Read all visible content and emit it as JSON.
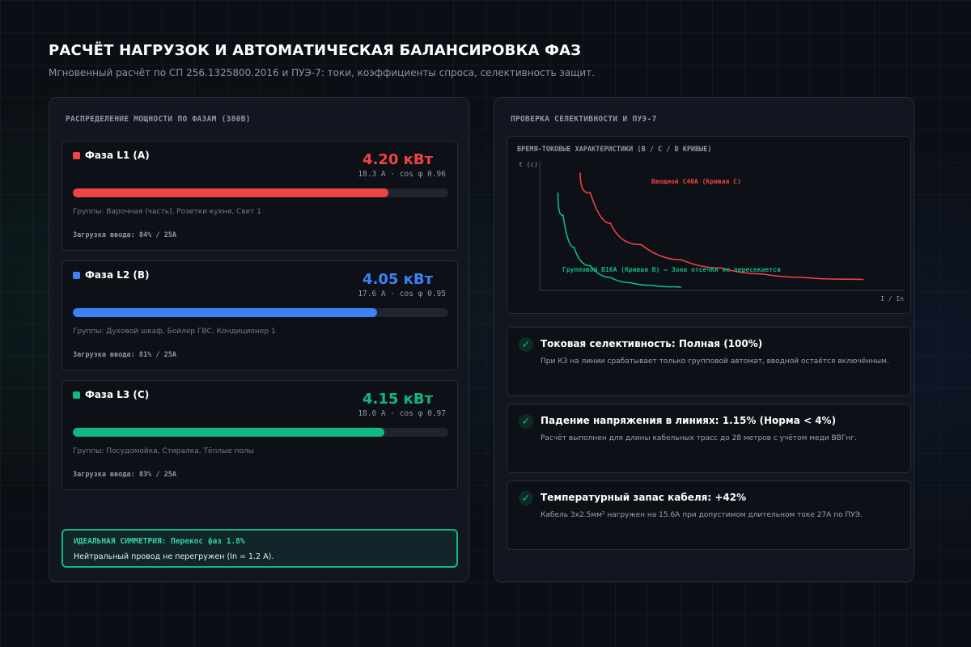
{
  "header": {
    "title": "РАСЧЁТ НАГРУЗОК И АВТОМАТИЧЕСКАЯ БАЛАНСИРОВКА ФАЗ",
    "subtitle": "Мгновенный расчёт по СП 256.1325800.2016 и ПУЭ-7: токи, коэффициенты спроса, селективность защит."
  },
  "left_panel": {
    "title": "РАСПРЕДЕЛЕНИЕ МОЩНОСТИ ПО ФАЗАМ (380В)",
    "phases": [
      {
        "name": "Фаза L1 (A)",
        "power": "4.20 кВт",
        "meta": "18.3 А · cos φ 0.96",
        "fill_fraction": 0.84,
        "groups": "Группы: Варочная (часть), Розетки кухня, Свет 1",
        "load": "Загрузка ввода: 84% / 25A",
        "color": "#ef4444"
      },
      {
        "name": "Фаза L2 (B)",
        "power": "4.05 кВт",
        "meta": "17.6 А · cos φ 0.95",
        "fill_fraction": 0.81,
        "groups": "Группы: Духовой шкаф, Бойлер ГВС, Кондиционер 1",
        "load": "Загрузка ввода: 81% / 25A",
        "color": "#3b82f6"
      },
      {
        "name": "Фаза L3 (C)",
        "power": "4.15 кВт",
        "meta": "18.0 А · cos φ 0.97",
        "fill_fraction": 0.83,
        "groups": "Группы: Посудомойка, Стиралка, Тёплые полы",
        "load": "Загрузка ввода: 83% / 25A",
        "color": "#10b981"
      }
    ],
    "symmetry": {
      "title": "ИДЕАЛЬНАЯ СИММЕТРИЯ: Перекос фаз 1.8%",
      "text": "Нейтральный провод не перегружен (In = 1.2 A)."
    }
  },
  "right_panel": {
    "title": "ПРОВЕРКА СЕЛЕКТИВНОСТИ И ПУЭ-7",
    "chart_title": "ВРЕМЯ-ТОКОВЫЕ ХАРАКТЕРИСТИКИ (B / C / D КРИВЫЕ)",
    "checks": [
      {
        "title": "Токовая селективность: Полная (100%)",
        "text": "При КЗ на линии срабатывает только групповой автомат, вводной остаётся включённым.",
        "icon": "check-icon"
      },
      {
        "title": "Падение напряжения в линиях: 1.15% (Норма < 4%)",
        "text": "Расчёт выполнен для длины кабельных трасс до 28 метров с учётом меди ВВГнг.",
        "icon": "check-icon"
      },
      {
        "title": "Температурный запас кабеля: +42%",
        "text": "Кабель 3х2.5мм² нагружен на 15.6А при допустимом длительном токе 27А по ПУЭ.",
        "icon": "check-icon"
      }
    ]
  },
  "chart_data": {
    "type": "line",
    "title": "ВРЕМЯ-ТОКОВЫЕ ХАРАКТЕРИСТИКИ (B / C / D КРИВЫЕ)",
    "xlabel": "I / In",
    "ylabel": "t (c)",
    "grid": false,
    "series": [
      {
        "name": "Вводной C40A (Кривая C)",
        "color": "#ef4444",
        "x": [
          1.0,
          1.5,
          2.0,
          3.0,
          4.0,
          5.0,
          6.0,
          7.0,
          8.0
        ],
        "y": [
          1.0,
          0.66,
          0.48,
          0.3,
          0.22,
          0.16,
          0.12,
          0.1,
          0.09
        ]
      },
      {
        "name": "Групповой B16A (Кривая B) — Зона отсечки не пересекается",
        "color": "#10b981",
        "x": [
          0.45,
          0.7,
          1.0,
          1.5,
          2.0,
          2.5,
          3.0,
          3.5
        ],
        "y": [
          0.83,
          0.45,
          0.28,
          0.14,
          0.08,
          0.05,
          0.035,
          0.025
        ]
      }
    ],
    "xlim": [
      0,
      9
    ],
    "ylim": [
      0,
      1.1
    ]
  }
}
